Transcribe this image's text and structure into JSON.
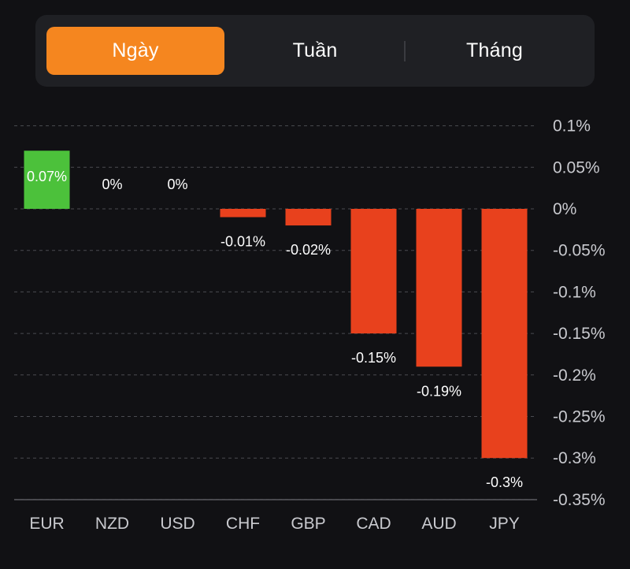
{
  "tabs": [
    {
      "label": "Ngày",
      "active": true
    },
    {
      "label": "Tuần",
      "active": false
    },
    {
      "label": "Tháng",
      "active": false
    }
  ],
  "colors": {
    "background": "#111114",
    "tab_bar": "#1f2024",
    "tab_active": "#f5861f",
    "positive": "#4cc13b",
    "negative": "#e8411d",
    "grid": "#4a4b50",
    "axis_text": "#c9cacf"
  },
  "chart_data": {
    "type": "bar",
    "categories": [
      "EUR",
      "NZD",
      "USD",
      "CHF",
      "GBP",
      "CAD",
      "AUD",
      "JPY"
    ],
    "values": [
      0.07,
      0,
      0,
      -0.01,
      -0.02,
      -0.15,
      -0.19,
      -0.3
    ],
    "data_labels": [
      "0.07%",
      "0%",
      "0%",
      "-0.01%",
      "-0.02%",
      "-0.15%",
      "-0.19%",
      "-0.3%"
    ],
    "y_ticks": [
      0.1,
      0.05,
      0,
      -0.05,
      -0.1,
      -0.15,
      -0.2,
      -0.25,
      -0.3,
      -0.35
    ],
    "y_tick_labels": [
      "0.1%",
      "0.05%",
      "0%",
      "-0.05%",
      "-0.1%",
      "-0.15%",
      "-0.2%",
      "-0.25%",
      "-0.3%",
      "-0.35%"
    ],
    "ylim": [
      -0.35,
      0.1
    ],
    "grid": true,
    "y_axis_position": "right"
  }
}
